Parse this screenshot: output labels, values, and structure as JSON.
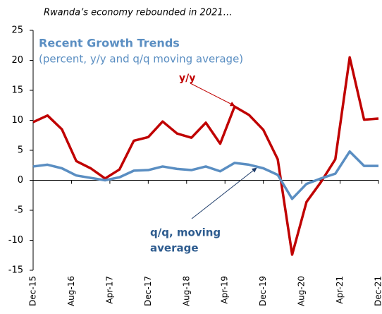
{
  "chart_data": {
    "type": "line",
    "title": "Rwanda’s economy rebounded in 2021…",
    "subtitle": "Recent Growth Trends",
    "note": "(percent, y/y and q/q moving average)",
    "annotations": [
      "y/y",
      "q/q, moving",
      "average"
    ],
    "x": [
      "2015-12",
      "2016-03",
      "2016-06",
      "2016-09",
      "2016-12",
      "2017-03",
      "2017-06",
      "2017-09",
      "2017-12",
      "2018-03",
      "2018-06",
      "2018-09",
      "2018-12",
      "2019-03",
      "2019-06",
      "2019-09",
      "2019-12",
      "2020-03",
      "2020-06",
      "2020-09",
      "2020-12",
      "2021-03",
      "2021-06",
      "2021-09",
      "2021-12"
    ],
    "series": [
      {
        "name": "y/y",
        "color": "#c00000",
        "values": [
          9.7,
          10.8,
          8.5,
          3.2,
          2.0,
          0.3,
          1.8,
          6.6,
          7.2,
          9.8,
          7.8,
          7.1,
          9.6,
          6.1,
          12.3,
          10.9,
          8.4,
          3.5,
          -12.4,
          -3.6,
          -0.3,
          3.5,
          20.5,
          10.1,
          10.3
        ]
      },
      {
        "name": "q/q, moving average",
        "color": "#5a8ec2",
        "values": [
          2.3,
          2.6,
          2.0,
          0.8,
          0.4,
          0.0,
          0.5,
          1.6,
          1.7,
          2.3,
          1.9,
          1.7,
          2.3,
          1.5,
          2.9,
          2.6,
          2.0,
          0.9,
          -3.1,
          -0.6,
          0.3,
          1.1,
          4.8,
          2.4,
          2.4
        ]
      }
    ],
    "xlim": [
      "2015-12",
      "2021-12"
    ],
    "xticks": [
      {
        "value": "2015-12",
        "label": "Dec-15"
      },
      {
        "value": "2016-08",
        "label": "Aug-16"
      },
      {
        "value": "2017-04",
        "label": "Apr-17"
      },
      {
        "value": "2017-12",
        "label": "Dec-17"
      },
      {
        "value": "2018-08",
        "label": "Aug-18"
      },
      {
        "value": "2019-04",
        "label": "Apr-19"
      },
      {
        "value": "2019-12",
        "label": "Dec-19"
      },
      {
        "value": "2020-08",
        "label": "Aug-20"
      },
      {
        "value": "2021-04",
        "label": "Apr-21"
      },
      {
        "value": "2021-12",
        "label": "Dec-21"
      }
    ],
    "ylim": [
      -15,
      25
    ],
    "yticks": [
      -15,
      -10,
      -5,
      0,
      5,
      10,
      15,
      20,
      25
    ],
    "grid": false
  }
}
